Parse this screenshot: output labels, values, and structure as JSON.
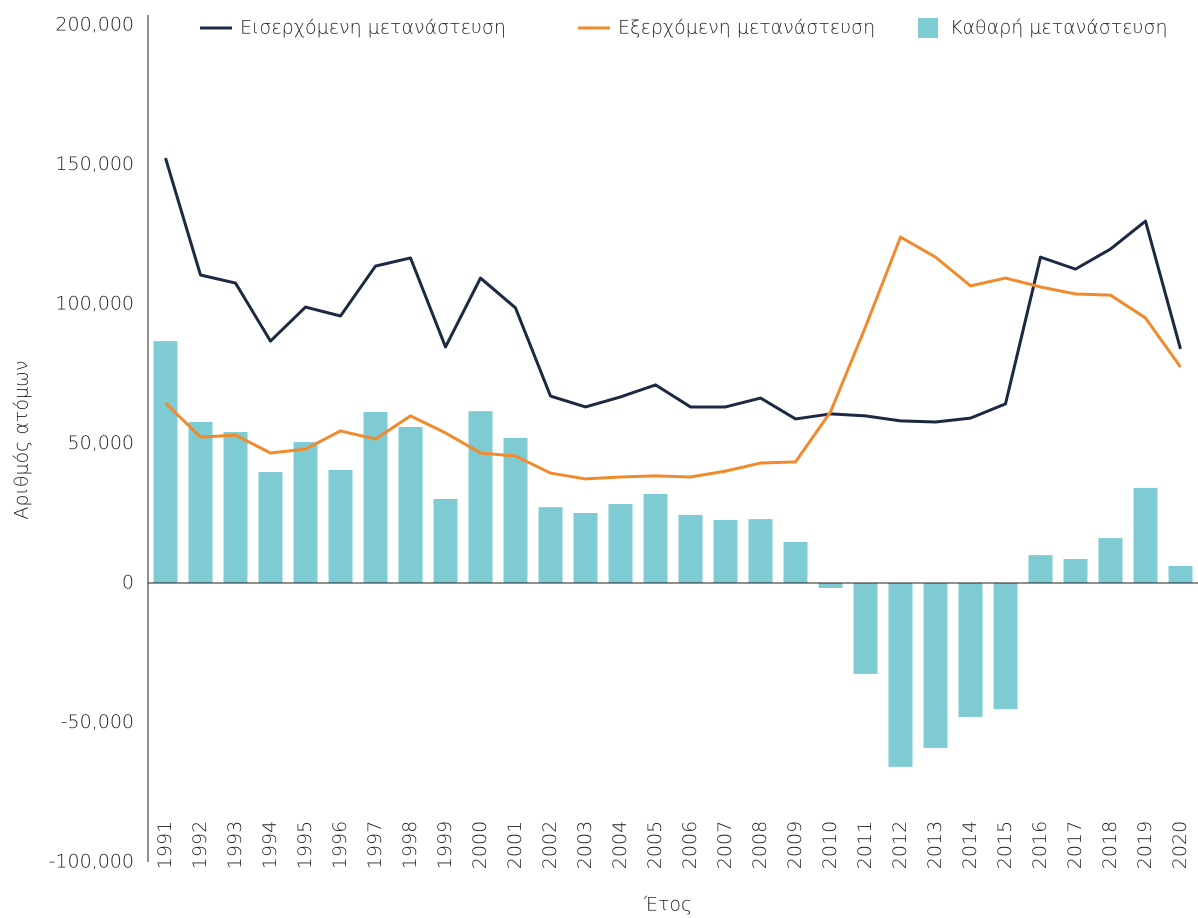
{
  "chart_data": {
    "type": "bar_line",
    "y_axis_label": "Αριθμός ατόμων",
    "x_axis_label": "Έτος",
    "categories": [
      "1991",
      "1992",
      "1993",
      "1994",
      "1995",
      "1996",
      "1997",
      "1998",
      "1999",
      "2000",
      "2001",
      "2002",
      "2003",
      "2004",
      "2005",
      "2006",
      "2007",
      "2008",
      "2009",
      "2010",
      "2011",
      "2012",
      "2013",
      "2014",
      "2015",
      "2016",
      "2017",
      "2018",
      "2019",
      "2020"
    ],
    "series": [
      {
        "name": "Εισερχόμενη μετανάστευση",
        "type": "line",
        "color": "#1b2a41",
        "values": [
          152300,
          110400,
          107500,
          86700,
          98900,
          95700,
          113600,
          116500,
          84600,
          109300,
          98600,
          67000,
          63100,
          66700,
          71000,
          63100,
          63100,
          66300,
          58800,
          60600,
          59900,
          58100,
          57700,
          59100,
          64200,
          116800,
          112500,
          119700,
          129700,
          83900
        ]
      },
      {
        "name": "Εξερχόμενη μετανάστευση",
        "type": "line",
        "color": "#f08a2c",
        "values": [
          64500,
          52300,
          53000,
          46600,
          48000,
          54500,
          51600,
          59900,
          53800,
          46600,
          45500,
          39400,
          37300,
          38000,
          38400,
          38000,
          40100,
          43000,
          43400,
          61300,
          91800,
          124000,
          116800,
          106500,
          109300,
          106100,
          103600,
          103200,
          95000,
          77400
        ]
      },
      {
        "name": "Καθαρή μετανάστευση",
        "type": "bar",
        "color": "#7ecbd4",
        "values": [
          86700,
          57700,
          54100,
          39800,
          50500,
          40500,
          61300,
          55900,
          30100,
          61600,
          52000,
          27200,
          25100,
          28300,
          31900,
          24400,
          22600,
          22900,
          14700,
          -1800,
          -32600,
          -65900,
          -59100,
          -48000,
          -45200,
          10000,
          8600,
          16100,
          34100,
          6100
        ]
      }
    ],
    "ylim": [
      -100000,
      200000
    ],
    "yticks": [
      {
        "value": -100000,
        "label": "-100,000"
      },
      {
        "value": -50000,
        "label": "-50,000"
      },
      0,
      {
        "value": 50000,
        "label": "50,000"
      },
      {
        "value": 100000,
        "label": "100,000"
      },
      {
        "value": 150000,
        "label": "150,000"
      },
      {
        "value": 200000,
        "label": "200,000"
      }
    ],
    "legend": "top"
  }
}
